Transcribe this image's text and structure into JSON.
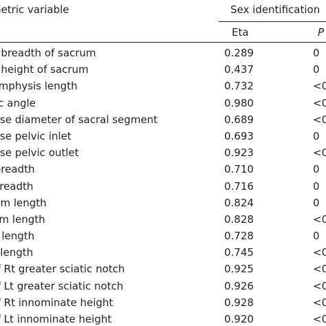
{
  "header": {
    "variable_col": "Pelvimetric variable",
    "group": "Sex identification",
    "eta_col": "Eta",
    "p_col": "P"
  },
  "rows": [
    {
      "variable": "Anterior breadth of sacrum",
      "eta": "0.289",
      "p": "0"
    },
    {
      "variable": "Anterior height of sacrum",
      "eta": "0.437",
      "p": "0"
    },
    {
      "variable": "Pubic symphysis length",
      "eta": "0.732",
      "p": "<0"
    },
    {
      "variable": "Subpubic angle",
      "eta": "0.980",
      "p": "<0"
    },
    {
      "variable": "Transverse diameter of sacral segment",
      "eta": "0.689",
      "p": "<0"
    },
    {
      "variable": "Transverse pelvic inlet",
      "eta": "0.693",
      "p": "0"
    },
    {
      "variable": "Transverse pelvic outlet",
      "eta": "0.923",
      "p": "<0"
    },
    {
      "variable": "Rt iliac breadth",
      "eta": "0.710",
      "p": "0"
    },
    {
      "variable": "Lt iliac breadth",
      "eta": "0.716",
      "p": "0"
    },
    {
      "variable": "Rt ischium length",
      "eta": "0.824",
      "p": "0"
    },
    {
      "variable": "Lt ischium length",
      "eta": "0.828",
      "p": "<0"
    },
    {
      "variable": "Rt pubis length",
      "eta": "0.728",
      "p": "0"
    },
    {
      "variable": "Lt pubis length",
      "eta": "0.745",
      "p": "<0"
    },
    {
      "variable": "Depth of Rt greater sciatic notch",
      "eta": "0.925",
      "p": "<0"
    },
    {
      "variable": "Depth of Lt greater sciatic notch",
      "eta": "0.926",
      "p": "<0"
    },
    {
      "variable": "Depth of Rt innominate height",
      "eta": "0.928",
      "p": "<0"
    },
    {
      "variable": "Depth of Lt innominate height",
      "eta": "0.920",
      "p": "<0"
    }
  ]
}
